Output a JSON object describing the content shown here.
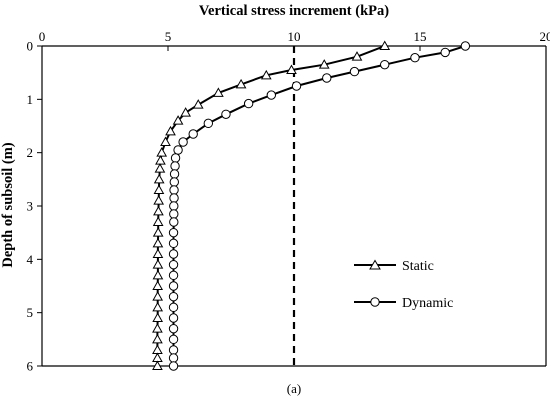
{
  "chart_data": {
    "type": "line",
    "title": "",
    "xlabel": "Vertical stress increment (kPa)",
    "ylabel": "Depth of subsoil (m)",
    "xlim": [
      0,
      20
    ],
    "ylim": [
      0,
      6
    ],
    "y_inverted": true,
    "x_axis_position": "top",
    "x_ticks": [
      "0",
      "5",
      "10",
      "15",
      "20"
    ],
    "y_ticks": [
      "0",
      "1",
      "2",
      "3",
      "4",
      "5",
      "6"
    ],
    "grid": false,
    "legend_position": "right-center",
    "caption": "(a)",
    "reference_line": {
      "x": 10,
      "style": "dashed"
    },
    "series": [
      {
        "name": "Static",
        "marker": "triangle",
        "points": [
          [
            13.6,
            0.0
          ],
          [
            12.5,
            0.2
          ],
          [
            11.2,
            0.35
          ],
          [
            9.9,
            0.45
          ],
          [
            8.9,
            0.55
          ],
          [
            7.9,
            0.72
          ],
          [
            7.0,
            0.88
          ],
          [
            6.2,
            1.1
          ],
          [
            5.7,
            1.25
          ],
          [
            5.4,
            1.4
          ],
          [
            5.1,
            1.6
          ],
          [
            4.9,
            1.8
          ],
          [
            4.75,
            2.0
          ],
          [
            4.7,
            2.15
          ],
          [
            4.68,
            2.3
          ],
          [
            4.65,
            2.5
          ],
          [
            4.64,
            2.7
          ],
          [
            4.63,
            2.9
          ],
          [
            4.62,
            3.1
          ],
          [
            4.61,
            3.3
          ],
          [
            4.61,
            3.5
          ],
          [
            4.6,
            3.7
          ],
          [
            4.6,
            3.9
          ],
          [
            4.6,
            4.1
          ],
          [
            4.6,
            4.3
          ],
          [
            4.59,
            4.5
          ],
          [
            4.59,
            4.7
          ],
          [
            4.59,
            4.9
          ],
          [
            4.59,
            5.1
          ],
          [
            4.58,
            5.3
          ],
          [
            4.58,
            5.5
          ],
          [
            4.58,
            5.7
          ],
          [
            4.58,
            5.85
          ],
          [
            4.58,
            6.0
          ]
        ]
      },
      {
        "name": "Dynamic",
        "marker": "circle",
        "points": [
          [
            16.8,
            0.0
          ],
          [
            16.0,
            0.12
          ],
          [
            14.8,
            0.22
          ],
          [
            13.6,
            0.35
          ],
          [
            12.4,
            0.48
          ],
          [
            11.3,
            0.6
          ],
          [
            10.1,
            0.75
          ],
          [
            9.1,
            0.92
          ],
          [
            8.2,
            1.08
          ],
          [
            7.3,
            1.28
          ],
          [
            6.6,
            1.45
          ],
          [
            6.0,
            1.65
          ],
          [
            5.6,
            1.8
          ],
          [
            5.4,
            1.95
          ],
          [
            5.3,
            2.1
          ],
          [
            5.28,
            2.25
          ],
          [
            5.26,
            2.4
          ],
          [
            5.25,
            2.55
          ],
          [
            5.24,
            2.7
          ],
          [
            5.24,
            2.85
          ],
          [
            5.23,
            3.0
          ],
          [
            5.23,
            3.15
          ],
          [
            5.23,
            3.3
          ],
          [
            5.22,
            3.5
          ],
          [
            5.22,
            3.7
          ],
          [
            5.22,
            3.9
          ],
          [
            5.22,
            4.1
          ],
          [
            5.22,
            4.3
          ],
          [
            5.22,
            4.5
          ],
          [
            5.22,
            4.7
          ],
          [
            5.22,
            4.9
          ],
          [
            5.22,
            5.1
          ],
          [
            5.22,
            5.3
          ],
          [
            5.22,
            5.5
          ],
          [
            5.22,
            5.7
          ],
          [
            5.22,
            5.85
          ],
          [
            5.22,
            6.0
          ]
        ]
      }
    ]
  }
}
